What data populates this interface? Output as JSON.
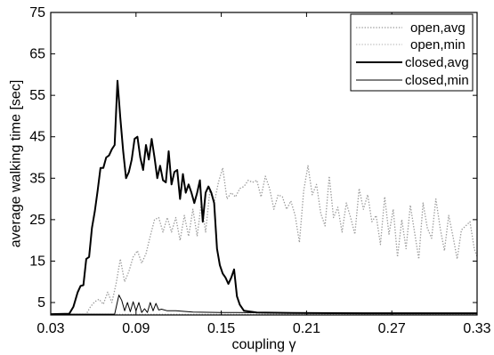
{
  "chart_data": {
    "type": "line",
    "title": "",
    "xlabel": "coupling γ",
    "ylabel": "average walking time [sec]",
    "xlim": [
      0.03,
      0.33
    ],
    "ylim": [
      2,
      75
    ],
    "xticks": [
      0.03,
      0.09,
      0.15,
      0.21,
      0.27,
      0.33
    ],
    "xtick_labels": [
      "0.03",
      "0.09",
      "0.15",
      "0.21",
      "0.27",
      "0.33"
    ],
    "yticks": [
      5,
      15,
      25,
      35,
      45,
      55,
      65,
      75
    ],
    "ytick_labels": [
      "5",
      "15",
      "25",
      "35",
      "45",
      "55",
      "65",
      "75"
    ],
    "grid": false,
    "legend_position": "top-right",
    "series": [
      {
        "name": "open,avg",
        "color": "#9a9a9a",
        "style": "dotted",
        "width": 1.3,
        "points": [
          [
            0.03,
            2.2
          ],
          [
            0.055,
            2.2
          ],
          [
            0.058,
            4.0
          ],
          [
            0.061,
            5.2
          ],
          [
            0.064,
            5.8
          ],
          [
            0.067,
            4.6
          ],
          [
            0.07,
            7.5
          ],
          [
            0.073,
            5.0
          ],
          [
            0.076,
            9.5
          ],
          [
            0.079,
            15.5
          ],
          [
            0.082,
            10.0
          ],
          [
            0.085,
            12.5
          ],
          [
            0.088,
            16.0
          ],
          [
            0.091,
            17.5
          ],
          [
            0.094,
            14.5
          ],
          [
            0.097,
            16.8
          ],
          [
            0.1,
            21.0
          ],
          [
            0.103,
            25.0
          ],
          [
            0.106,
            25.5
          ],
          [
            0.109,
            22.0
          ],
          [
            0.112,
            25.5
          ],
          [
            0.115,
            22.0
          ],
          [
            0.118,
            25.5
          ],
          [
            0.121,
            20.0
          ],
          [
            0.124,
            26.0
          ],
          [
            0.127,
            21.0
          ],
          [
            0.13,
            27.5
          ],
          [
            0.133,
            21.0
          ],
          [
            0.136,
            29.0
          ],
          [
            0.139,
            22.0
          ],
          [
            0.142,
            32.0
          ],
          [
            0.145,
            29.0
          ],
          [
            0.148,
            34.0
          ],
          [
            0.151,
            37.5
          ],
          [
            0.154,
            30.0
          ],
          [
            0.157,
            31.5
          ],
          [
            0.16,
            30.5
          ],
          [
            0.163,
            32.5
          ],
          [
            0.166,
            33.0
          ],
          [
            0.169,
            34.5
          ],
          [
            0.172,
            34.0
          ],
          [
            0.175,
            34.5
          ],
          [
            0.178,
            30.5
          ],
          [
            0.181,
            35.5
          ],
          [
            0.184,
            32.5
          ],
          [
            0.187,
            27.5
          ],
          [
            0.19,
            31.0
          ],
          [
            0.193,
            30.5
          ],
          [
            0.196,
            27.5
          ],
          [
            0.199,
            29.5
          ],
          [
            0.202,
            26.0
          ],
          [
            0.205,
            19.5
          ],
          [
            0.208,
            32.0
          ],
          [
            0.211,
            38.0
          ],
          [
            0.214,
            31.0
          ],
          [
            0.217,
            33.5
          ],
          [
            0.22,
            26.5
          ],
          [
            0.223,
            23.5
          ],
          [
            0.226,
            35.5
          ],
          [
            0.229,
            25.5
          ],
          [
            0.232,
            28.0
          ],
          [
            0.235,
            22.0
          ],
          [
            0.238,
            29.0
          ],
          [
            0.241,
            25.5
          ],
          [
            0.244,
            21.5
          ],
          [
            0.247,
            32.5
          ],
          [
            0.25,
            27.5
          ],
          [
            0.253,
            31.0
          ],
          [
            0.256,
            24.5
          ],
          [
            0.259,
            26.0
          ],
          [
            0.262,
            19.0
          ],
          [
            0.265,
            30.5
          ],
          [
            0.268,
            21.5
          ],
          [
            0.271,
            27.5
          ],
          [
            0.274,
            16.0
          ],
          [
            0.277,
            25.0
          ],
          [
            0.28,
            18.0
          ],
          [
            0.283,
            28.5
          ],
          [
            0.286,
            22.0
          ],
          [
            0.289,
            15.5
          ],
          [
            0.292,
            29.0
          ],
          [
            0.295,
            23.0
          ],
          [
            0.298,
            20.5
          ],
          [
            0.301,
            30.0
          ],
          [
            0.304,
            23.0
          ],
          [
            0.307,
            17.5
          ],
          [
            0.31,
            26.0
          ],
          [
            0.313,
            21.0
          ],
          [
            0.316,
            15.5
          ],
          [
            0.319,
            22.5
          ],
          [
            0.322,
            23.5
          ],
          [
            0.325,
            24.5
          ],
          [
            0.328,
            18.0
          ],
          [
            0.33,
            16.0
          ]
        ]
      },
      {
        "name": "open,min",
        "color": "#b0b0b0",
        "style": "dotted",
        "width": 1.0,
        "points": [
          [
            0.03,
            2.2
          ],
          [
            0.33,
            2.2
          ]
        ]
      },
      {
        "name": "closed,avg",
        "color": "#000000",
        "style": "solid",
        "width": 2.0,
        "points": [
          [
            0.03,
            2.2
          ],
          [
            0.043,
            2.3
          ],
          [
            0.046,
            4.0
          ],
          [
            0.049,
            7.5
          ],
          [
            0.051,
            9.0
          ],
          [
            0.053,
            9.2
          ],
          [
            0.055,
            15.5
          ],
          [
            0.057,
            16.0
          ],
          [
            0.059,
            23.0
          ],
          [
            0.061,
            27.0
          ],
          [
            0.063,
            32.0
          ],
          [
            0.065,
            37.5
          ],
          [
            0.067,
            37.5
          ],
          [
            0.069,
            40.0
          ],
          [
            0.071,
            40.5
          ],
          [
            0.073,
            42.0
          ],
          [
            0.075,
            43.0
          ],
          [
            0.077,
            58.5
          ],
          [
            0.079,
            49.5
          ],
          [
            0.081,
            41.5
          ],
          [
            0.083,
            35.0
          ],
          [
            0.085,
            36.5
          ],
          [
            0.087,
            39.5
          ],
          [
            0.089,
            44.5
          ],
          [
            0.091,
            45.0
          ],
          [
            0.093,
            40.0
          ],
          [
            0.095,
            37.0
          ],
          [
            0.097,
            43.0
          ],
          [
            0.099,
            39.5
          ],
          [
            0.101,
            44.5
          ],
          [
            0.103,
            40.0
          ],
          [
            0.105,
            35.0
          ],
          [
            0.107,
            38.0
          ],
          [
            0.109,
            34.5
          ],
          [
            0.111,
            34.0
          ],
          [
            0.113,
            41.5
          ],
          [
            0.115,
            33.5
          ],
          [
            0.117,
            36.5
          ],
          [
            0.119,
            37.0
          ],
          [
            0.121,
            30.0
          ],
          [
            0.123,
            36.0
          ],
          [
            0.125,
            31.5
          ],
          [
            0.127,
            33.5
          ],
          [
            0.129,
            31.5
          ],
          [
            0.131,
            29.0
          ],
          [
            0.133,
            31.5
          ],
          [
            0.135,
            34.5
          ],
          [
            0.137,
            24.5
          ],
          [
            0.139,
            31.5
          ],
          [
            0.141,
            33.0
          ],
          [
            0.143,
            31.5
          ],
          [
            0.145,
            29.0
          ],
          [
            0.147,
            18.0
          ],
          [
            0.149,
            14.0
          ],
          [
            0.151,
            12.0
          ],
          [
            0.153,
            11.0
          ],
          [
            0.155,
            9.5
          ],
          [
            0.157,
            11.0
          ],
          [
            0.159,
            13.0
          ],
          [
            0.161,
            6.5
          ],
          [
            0.163,
            4.5
          ],
          [
            0.166,
            3.0
          ],
          [
            0.175,
            2.6
          ],
          [
            0.2,
            2.5
          ],
          [
            0.25,
            2.4
          ],
          [
            0.33,
            2.4
          ]
        ]
      },
      {
        "name": "closed,min",
        "color": "#000000",
        "style": "solid",
        "width": 1.0,
        "points": [
          [
            0.03,
            2.2
          ],
          [
            0.075,
            2.2
          ],
          [
            0.078,
            6.8
          ],
          [
            0.08,
            5.5
          ],
          [
            0.082,
            3.0
          ],
          [
            0.084,
            5.0
          ],
          [
            0.086,
            2.8
          ],
          [
            0.088,
            5.2
          ],
          [
            0.09,
            3.0
          ],
          [
            0.092,
            5.0
          ],
          [
            0.094,
            2.6
          ],
          [
            0.096,
            3.5
          ],
          [
            0.098,
            2.6
          ],
          [
            0.1,
            5.0
          ],
          [
            0.102,
            3.0
          ],
          [
            0.104,
            4.8
          ],
          [
            0.106,
            3.2
          ],
          [
            0.108,
            3.4
          ],
          [
            0.112,
            3.0
          ],
          [
            0.118,
            3.0
          ],
          [
            0.13,
            2.7
          ],
          [
            0.15,
            2.6
          ],
          [
            0.16,
            2.6
          ],
          [
            0.2,
            2.5
          ],
          [
            0.33,
            2.4
          ]
        ]
      }
    ]
  }
}
